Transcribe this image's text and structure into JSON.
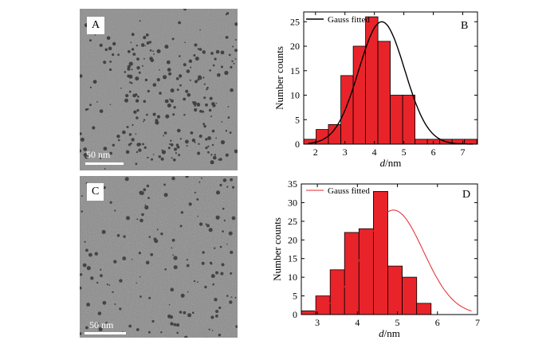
{
  "micrographs": [
    {
      "label": "A",
      "scale_bar_text": "50 nm"
    },
    {
      "label": "C",
      "scale_bar_text": "50 nm"
    }
  ],
  "colors": {
    "bar_fill": "#e8242a",
    "bar_stroke": "#000000",
    "fit_B": "#000000",
    "fit_D": "#e8242a"
  },
  "chart_data": [
    {
      "type": "bar",
      "panel_label": "B",
      "xlabel_italic": "d",
      "xlabel_unit": "/nm",
      "ylabel": "Number counts",
      "xlim": [
        1.6,
        7.5
      ],
      "ylim": [
        0,
        27
      ],
      "xticks": [
        2,
        3,
        4,
        5,
        6,
        7
      ],
      "yticks": [
        0,
        5,
        10,
        15,
        20,
        25
      ],
      "bin_width": 0.42,
      "x": [
        1.81,
        2.23,
        2.65,
        3.07,
        3.49,
        3.91,
        4.33,
        4.75,
        5.17,
        5.59,
        6.01,
        6.43,
        6.85,
        7.27
      ],
      "values": [
        1,
        3,
        4,
        14,
        20,
        26,
        21,
        10,
        10,
        1,
        1,
        1,
        1,
        1
      ],
      "fit": {
        "name": "Gauss fitted",
        "mu": 4.25,
        "sigma": 0.78,
        "amp": 25
      },
      "legend": "top-left"
    },
    {
      "type": "bar",
      "panel_label": "D",
      "xlabel_italic": "d",
      "xlabel_unit": "/nm",
      "ylabel": "Number counts",
      "xlim": [
        2.6,
        7.0
      ],
      "ylim": [
        0,
        35
      ],
      "xticks": [
        3,
        4,
        5,
        6,
        7
      ],
      "yticks": [
        0,
        5,
        10,
        15,
        20,
        25,
        30,
        35
      ],
      "bin_width": 0.36,
      "x": [
        2.78,
        3.14,
        3.5,
        3.86,
        4.22,
        4.58,
        4.94,
        5.3,
        5.66,
        6.02,
        6.38,
        6.74
      ],
      "values": [
        1,
        5,
        12,
        22,
        23,
        33,
        13,
        10,
        3,
        0,
        0,
        0
      ],
      "fit": {
        "name": "Gauss fitted",
        "mu": 4.9,
        "sigma": 0.75,
        "amp": 28
      },
      "legend": "top-left"
    }
  ]
}
